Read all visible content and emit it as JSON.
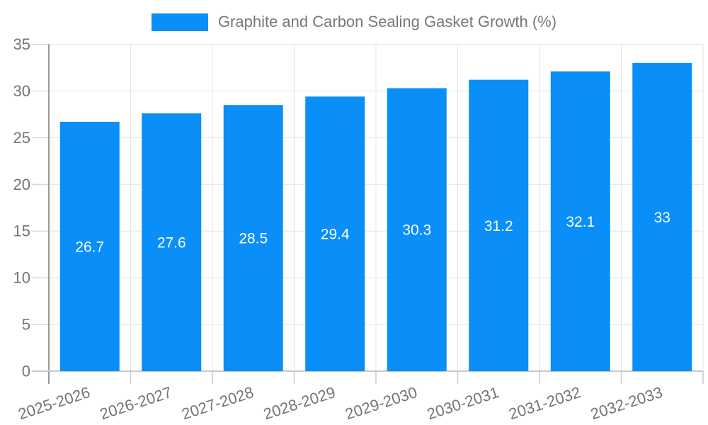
{
  "chart_data": {
    "type": "bar",
    "title": "Graphite and Carbon Sealing Gasket Growth (%)",
    "legend_entries": [
      "Graphite and Carbon Sealing Gasket Growth (%)"
    ],
    "legend_position": "top-center",
    "categories": [
      "2025-2026",
      "2026-2027",
      "2027-2028",
      "2028-2029",
      "2029-2030",
      "2030-2031",
      "2031-2032",
      "2032-2033"
    ],
    "values": [
      26.7,
      27.6,
      28.5,
      29.4,
      30.3,
      31.2,
      32.1,
      33
    ],
    "data_labels": [
      "26.7",
      "27.6",
      "28.5",
      "29.4",
      "30.3",
      "31.2",
      "32.1",
      "33"
    ],
    "xlabel": "",
    "ylabel": "",
    "ylim": [
      0,
      35
    ],
    "yticks": [
      0,
      5,
      10,
      15,
      20,
      25,
      30,
      35
    ],
    "grid": true,
    "x_label_rotation_deg": -18,
    "colors": {
      "bar": "#0a8ef7",
      "data_label": "#ffffff",
      "axis_tick_label": "#757575",
      "legend_text": "#777777",
      "gridline": "#e4e4e4",
      "tick": "#cbcbcb",
      "y_axis_line": "#999999",
      "x_axis_line": "#c9c9c9",
      "background": "#ffffff"
    }
  }
}
